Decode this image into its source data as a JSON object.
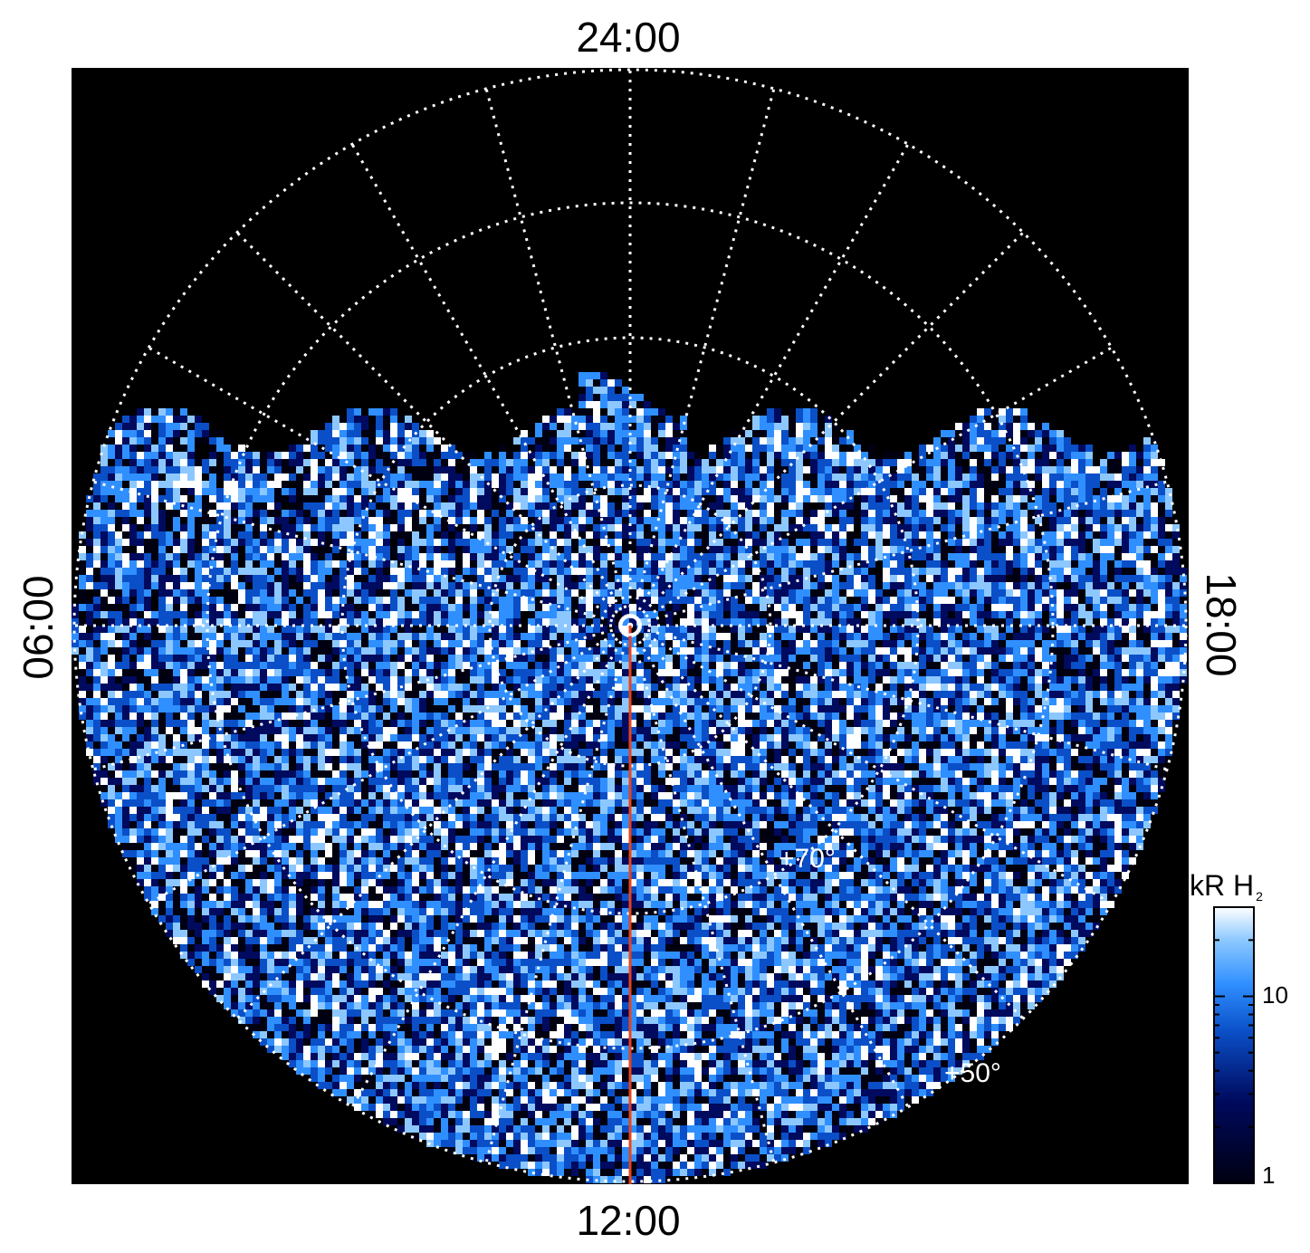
{
  "chart_data": {
    "type": "heatmap",
    "projection": "polar (magnetic local time vs latitude)",
    "local_time_labels": {
      "top": "24:00",
      "bottom": "12:00",
      "left": "06:00",
      "right": "18:00"
    },
    "latitude_labels": [
      "+70°",
      "+50°"
    ],
    "grid": true,
    "grid_style": "dotted white",
    "meridian_line": {
      "color": "#e8431c",
      "from": "pole",
      "to": "12:00"
    },
    "colorbar": {
      "title": "kR H",
      "title_subscript": "2",
      "scale": "log",
      "range": [
        1,
        30
      ],
      "ticks": [
        "10",
        "1"
      ],
      "tick_values": [
        10,
        1
      ],
      "colors": [
        "#000011",
        "#000a5e",
        "#0a4fc7",
        "#2f8fff",
        "#8cc8ff",
        "#ffffff"
      ],
      "placement": "right-bottom"
    },
    "description_fields": {
      "noise_pattern": "random speckle",
      "night_side_band_colatitude_deg": [
        20,
        34
      ]
    }
  }
}
